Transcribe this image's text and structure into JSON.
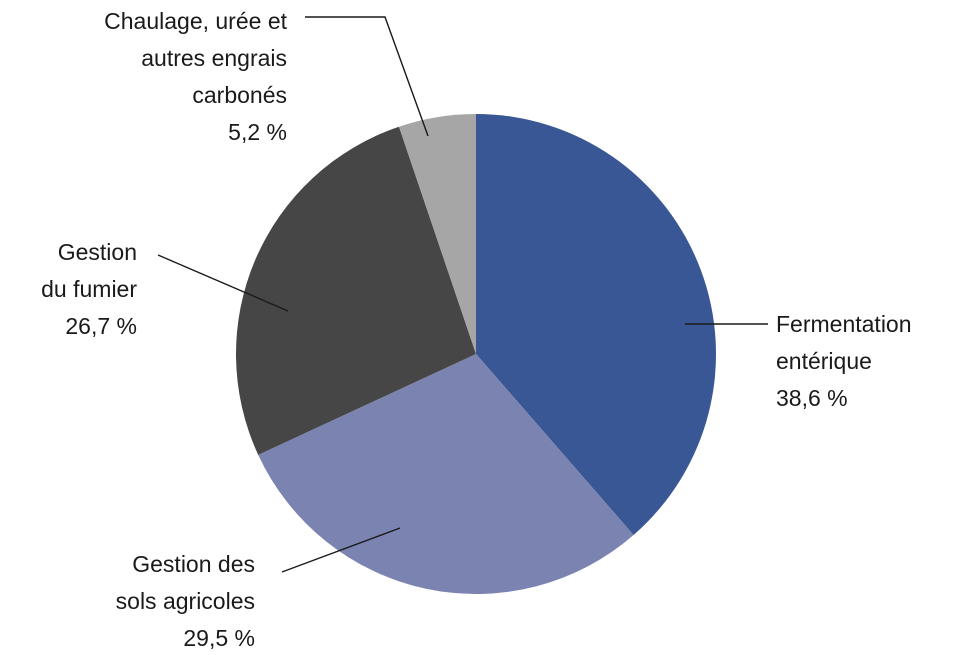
{
  "chart_data": {
    "type": "pie",
    "categories": [
      "Fermentation entérique",
      "Gestion des sols agricoles",
      "Gestion du fumier",
      "Chaulage, urée et autres engrais carbonés"
    ],
    "values": [
      38.6,
      29.5,
      26.7,
      5.2
    ],
    "value_labels": [
      "38,6 %",
      "29,5 %",
      "26,7 %",
      "5,2 %"
    ],
    "colors": [
      "#3a5795",
      "#7b84b0",
      "#464646",
      "#a6a6a6"
    ]
  }
}
